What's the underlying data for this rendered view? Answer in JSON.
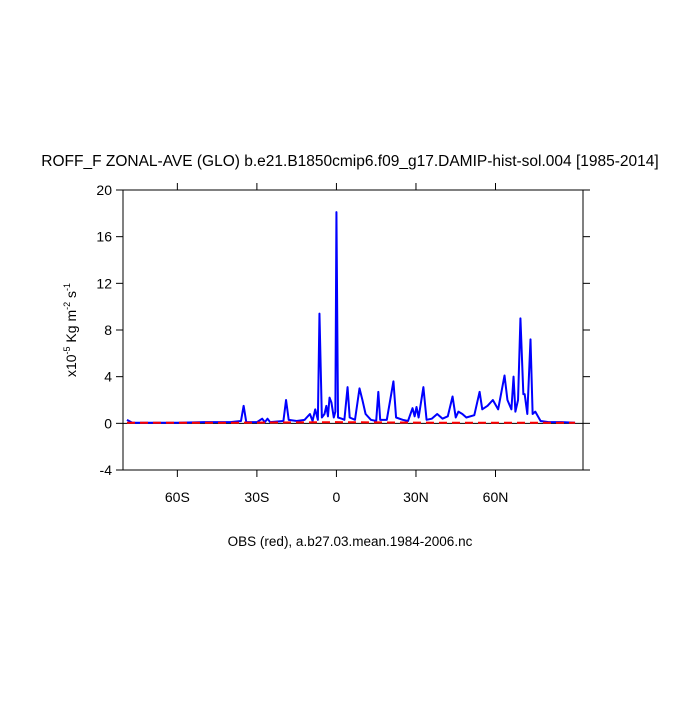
{
  "chart_data": {
    "type": "line",
    "title": "ROFF_F ZONAL-AVE (GLO) b.e21.B1850cmip6.f09_g17.DAMIP-hist-sol.004 [1985-2014]",
    "ylabel": [
      "x10",
      "-5",
      " Kg m",
      "-2",
      " s",
      "-1"
    ],
    "footer": "OBS (red), a.b27.03.mean.1984-2006.nc",
    "xlim": [
      -80.5,
      93
    ],
    "ylim": [
      -4,
      20
    ],
    "xticks": [
      {
        "value": -60,
        "label": "60S"
      },
      {
        "value": -30,
        "label": "30S"
      },
      0,
      {
        "value": 30,
        "label": "30N"
      },
      {
        "value": 60,
        "label": "60N"
      }
    ],
    "yticks": [
      -4,
      0,
      4,
      8,
      12,
      16,
      20
    ],
    "reference_line": {
      "value": 0,
      "color": "#000000"
    },
    "series": [
      {
        "color": "#0000ff",
        "dash": false,
        "x": [
          -79,
          -77,
          -70,
          -60,
          -50,
          -45,
          -40,
          -36,
          -35,
          -34,
          -30,
          -28,
          -27,
          -26,
          -25,
          -20,
          -19,
          -18,
          -15,
          -12,
          -10,
          -9,
          -8,
          -7,
          -6.4,
          -5.5,
          -4.5,
          -3.8,
          -3.2,
          -2.6,
          -1.9,
          -1,
          -0.4,
          0,
          0.6,
          2,
          3,
          4.2,
          5,
          7,
          8.7,
          9.8,
          11,
          13,
          15,
          15.8,
          16.5,
          19,
          21.5,
          22.5,
          25,
          27,
          28.7,
          29.5,
          30.2,
          31,
          32.8,
          34,
          36,
          38,
          40,
          42,
          43.8,
          45,
          46,
          47.5,
          49,
          52,
          54,
          55,
          57,
          59,
          61,
          63.4,
          64.5,
          66,
          66.8,
          67.5,
          68.5,
          69.4,
          70.5,
          71,
          72,
          73.2,
          74,
          75,
          77,
          80,
          85,
          90
        ],
        "values": [
          0.3,
          0.05,
          0.05,
          0.05,
          0.1,
          0.1,
          0.1,
          0.2,
          1.5,
          0.1,
          0.1,
          0.4,
          0.1,
          0.4,
          0.1,
          0.2,
          2.0,
          0.3,
          0.2,
          0.3,
          0.8,
          0.2,
          1.2,
          0.3,
          9.4,
          0.5,
          0.8,
          1.5,
          0.6,
          2.2,
          1.8,
          0.5,
          1.0,
          18.1,
          0.5,
          0.4,
          0.3,
          3.1,
          0.5,
          0.3,
          3.0,
          2.0,
          0.8,
          0.3,
          0.2,
          2.7,
          0.3,
          0.3,
          3.6,
          0.5,
          0.3,
          0.2,
          1.3,
          0.6,
          1.4,
          0.5,
          3.1,
          0.3,
          0.4,
          0.8,
          0.4,
          0.6,
          2.3,
          0.5,
          1.0,
          0.8,
          0.5,
          0.7,
          2.7,
          1.2,
          1.5,
          2.0,
          1.2,
          4.1,
          2.0,
          1.2,
          4.0,
          1.0,
          2.0,
          9.0,
          2.5,
          2.5,
          0.8,
          7.2,
          0.8,
          1.0,
          0.2,
          0.1,
          0.1,
          0.05
        ]
      },
      {
        "color": "#ff0000",
        "dash": true,
        "x": [
          -79,
          -40,
          0,
          40,
          90
        ],
        "values": [
          0.05,
          0.05,
          0.1,
          0.05,
          0.05
        ]
      }
    ]
  }
}
